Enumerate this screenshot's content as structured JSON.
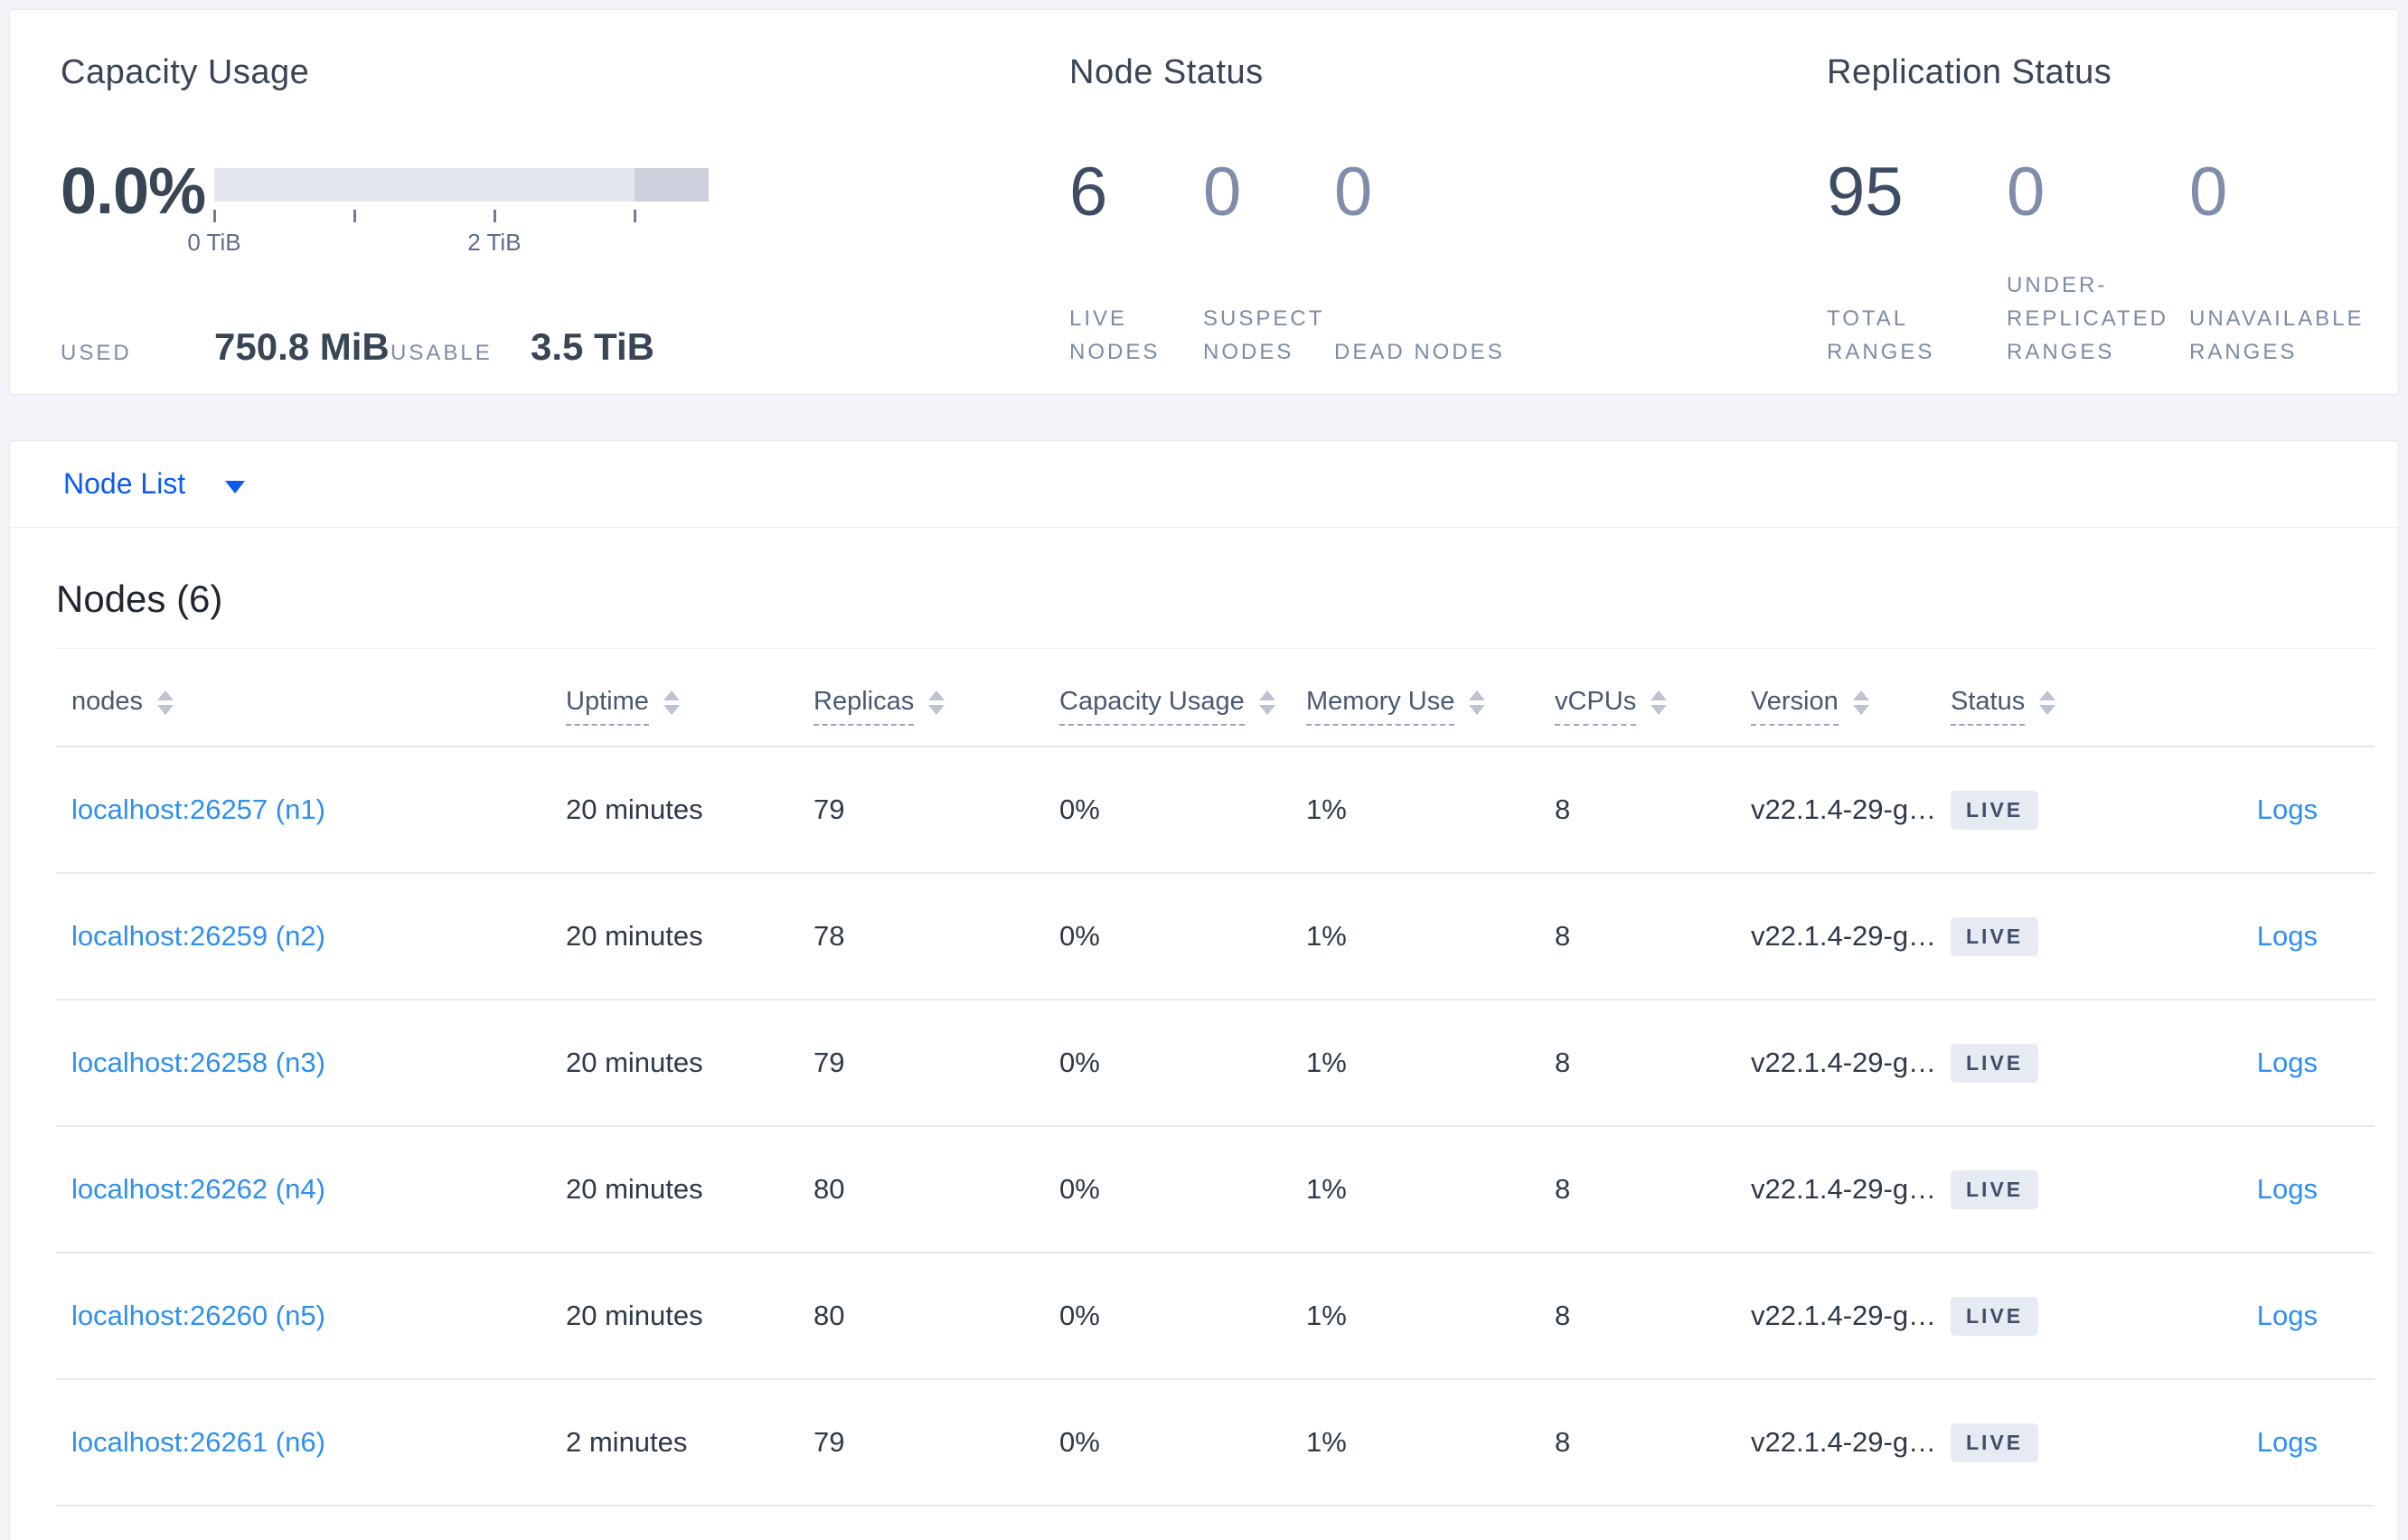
{
  "summary": {
    "capacity": {
      "title": "Capacity Usage",
      "percent": "0.0%",
      "bar": {
        "total_units": 3.53,
        "usable_until": 3.0
      },
      "ticks": [
        {
          "pos": 0,
          "label": "0 TiB"
        },
        {
          "pos": 1,
          "label": ""
        },
        {
          "pos": 2,
          "label": "2 TiB"
        },
        {
          "pos": 3,
          "label": ""
        }
      ],
      "used_label": "USED",
      "used_value": "750.8 MiB",
      "usable_label": "USABLE",
      "usable_value": "3.5 TiB"
    },
    "node_status": {
      "title": "Node Status",
      "stats": [
        {
          "value": "6",
          "label": "LIVE NODES"
        },
        {
          "value": "0",
          "label": "SUSPECT NODES"
        },
        {
          "value": "0",
          "label": "DEAD NODES"
        }
      ]
    },
    "replication": {
      "title": "Replication Status",
      "stats": [
        {
          "value": "95",
          "label": "TOTAL RANGES"
        },
        {
          "value": "0",
          "label": "UNDER-REPLICATED RANGES"
        },
        {
          "value": "0",
          "label": "UNAVAILABLE RANGES"
        }
      ]
    }
  },
  "view_selector": {
    "label": "Node List"
  },
  "table": {
    "title": "Nodes (6)",
    "columns": [
      {
        "label": "nodes"
      },
      {
        "label": "Uptime"
      },
      {
        "label": "Replicas"
      },
      {
        "label": "Capacity Usage"
      },
      {
        "label": "Memory Use"
      },
      {
        "label": "vCPUs"
      },
      {
        "label": "Version"
      },
      {
        "label": "Status"
      }
    ],
    "rows": [
      {
        "node": "localhost:26257 (n1)",
        "uptime": "20 minutes",
        "replicas": "79",
        "capacity": "0%",
        "memory": "1%",
        "vcpus": "8",
        "version": "v22.1.4-29-g…",
        "status": "LIVE",
        "logs": "Logs"
      },
      {
        "node": "localhost:26259 (n2)",
        "uptime": "20 minutes",
        "replicas": "78",
        "capacity": "0%",
        "memory": "1%",
        "vcpus": "8",
        "version": "v22.1.4-29-g…",
        "status": "LIVE",
        "logs": "Logs"
      },
      {
        "node": "localhost:26258 (n3)",
        "uptime": "20 minutes",
        "replicas": "79",
        "capacity": "0%",
        "memory": "1%",
        "vcpus": "8",
        "version": "v22.1.4-29-g…",
        "status": "LIVE",
        "logs": "Logs"
      },
      {
        "node": "localhost:26262 (n4)",
        "uptime": "20 minutes",
        "replicas": "80",
        "capacity": "0%",
        "memory": "1%",
        "vcpus": "8",
        "version": "v22.1.4-29-g…",
        "status": "LIVE",
        "logs": "Logs"
      },
      {
        "node": "localhost:26260 (n5)",
        "uptime": "20 minutes",
        "replicas": "80",
        "capacity": "0%",
        "memory": "1%",
        "vcpus": "8",
        "version": "v22.1.4-29-g…",
        "status": "LIVE",
        "logs": "Logs"
      },
      {
        "node": "localhost:26261 (n6)",
        "uptime": "2 minutes",
        "replicas": "79",
        "capacity": "0%",
        "memory": "1%",
        "vcpus": "8",
        "version": "v22.1.4-29-g…",
        "status": "LIVE",
        "logs": "Logs"
      }
    ]
  },
  "colors": {
    "link_blue": "#2e8ff2",
    "selector_blue": "#0b5bf0",
    "bar_usable": "#e5e7ee",
    "bar_other": "#ccd0dc",
    "badge_bg": "#e6ebf3"
  }
}
